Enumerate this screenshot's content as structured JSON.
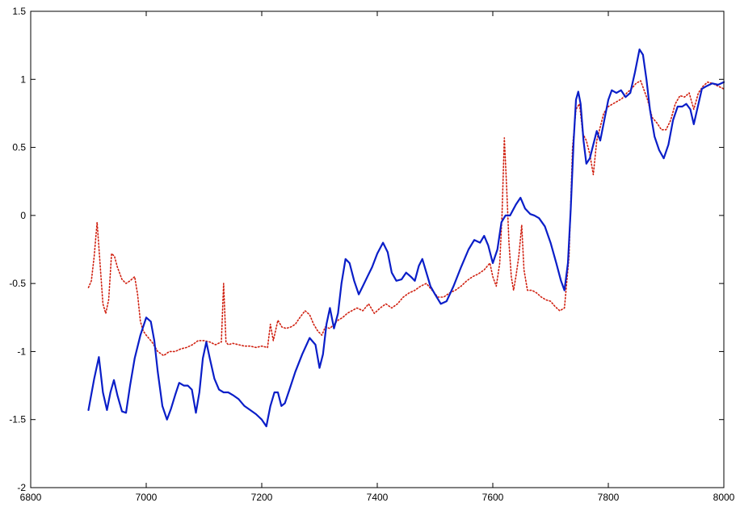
{
  "chart_data": {
    "type": "line",
    "title": "",
    "xlabel": "",
    "ylabel": "",
    "xlim": [
      6800,
      8000
    ],
    "ylim": [
      -2,
      1.5
    ],
    "xticks": [
      6800,
      7000,
      7200,
      7400,
      7600,
      7800,
      8000
    ],
    "yticks": [
      -2,
      -1.5,
      -1,
      -0.5,
      0,
      0.5,
      1,
      1.5
    ],
    "xtick_labels": [
      "6800",
      "7000",
      "7200",
      "7400",
      "7600",
      "7800",
      "8000"
    ],
    "ytick_labels": [
      "-2",
      "-1.5",
      "-1",
      "-0.5",
      "0",
      "0.5",
      "1",
      "1.5"
    ],
    "grid": false,
    "legend": "none",
    "series": [
      {
        "style": "solid",
        "color": "#0a1ec8",
        "points": [
          [
            6900,
            -1.43
          ],
          [
            6910,
            -1.2
          ],
          [
            6918,
            -1.04
          ],
          [
            6925,
            -1.3
          ],
          [
            6932,
            -1.43
          ],
          [
            6938,
            -1.3
          ],
          [
            6944,
            -1.21
          ],
          [
            6950,
            -1.32
          ],
          [
            6958,
            -1.44
          ],
          [
            6965,
            -1.45
          ],
          [
            6972,
            -1.25
          ],
          [
            6980,
            -1.05
          ],
          [
            6990,
            -0.88
          ],
          [
            7000,
            -0.75
          ],
          [
            7008,
            -0.78
          ],
          [
            7014,
            -0.92
          ],
          [
            7020,
            -1.15
          ],
          [
            7028,
            -1.4
          ],
          [
            7036,
            -1.5
          ],
          [
            7043,
            -1.42
          ],
          [
            7050,
            -1.32
          ],
          [
            7057,
            -1.23
          ],
          [
            7065,
            -1.25
          ],
          [
            7072,
            -1.25
          ],
          [
            7079,
            -1.28
          ],
          [
            7086,
            -1.45
          ],
          [
            7092,
            -1.3
          ],
          [
            7098,
            -1.05
          ],
          [
            7104,
            -0.93
          ],
          [
            7110,
            -1.05
          ],
          [
            7118,
            -1.2
          ],
          [
            7126,
            -1.28
          ],
          [
            7134,
            -1.3
          ],
          [
            7142,
            -1.3
          ],
          [
            7150,
            -1.32
          ],
          [
            7160,
            -1.35
          ],
          [
            7170,
            -1.4
          ],
          [
            7180,
            -1.43
          ],
          [
            7190,
            -1.46
          ],
          [
            7200,
            -1.5
          ],
          [
            7208,
            -1.55
          ],
          [
            7215,
            -1.4
          ],
          [
            7222,
            -1.3
          ],
          [
            7228,
            -1.3
          ],
          [
            7234,
            -1.4
          ],
          [
            7240,
            -1.38
          ],
          [
            7248,
            -1.28
          ],
          [
            7258,
            -1.15
          ],
          [
            7270,
            -1.02
          ],
          [
            7283,
            -0.9
          ],
          [
            7293,
            -0.95
          ],
          [
            7300,
            -1.12
          ],
          [
            7306,
            -1.02
          ],
          [
            7312,
            -0.8
          ],
          [
            7318,
            -0.68
          ],
          [
            7325,
            -0.83
          ],
          [
            7332,
            -0.72
          ],
          [
            7338,
            -0.5
          ],
          [
            7345,
            -0.32
          ],
          [
            7352,
            -0.35
          ],
          [
            7360,
            -0.48
          ],
          [
            7368,
            -0.58
          ],
          [
            7375,
            -0.52
          ],
          [
            7383,
            -0.45
          ],
          [
            7391,
            -0.38
          ],
          [
            7400,
            -0.28
          ],
          [
            7410,
            -0.2
          ],
          [
            7418,
            -0.27
          ],
          [
            7425,
            -0.42
          ],
          [
            7433,
            -0.48
          ],
          [
            7442,
            -0.47
          ],
          [
            7450,
            -0.42
          ],
          [
            7458,
            -0.45
          ],
          [
            7465,
            -0.48
          ],
          [
            7472,
            -0.37
          ],
          [
            7478,
            -0.32
          ],
          [
            7485,
            -0.42
          ],
          [
            7492,
            -0.52
          ],
          [
            7500,
            -0.58
          ],
          [
            7510,
            -0.65
          ],
          [
            7520,
            -0.63
          ],
          [
            7532,
            -0.52
          ],
          [
            7545,
            -0.38
          ],
          [
            7558,
            -0.25
          ],
          [
            7568,
            -0.18
          ],
          [
            7578,
            -0.2
          ],
          [
            7585,
            -0.15
          ],
          [
            7592,
            -0.22
          ],
          [
            7600,
            -0.35
          ],
          [
            7608,
            -0.25
          ],
          [
            7615,
            -0.05
          ],
          [
            7622,
            0
          ],
          [
            7630,
            0
          ],
          [
            7640,
            0.08
          ],
          [
            7648,
            0.13
          ],
          [
            7656,
            0.05
          ],
          [
            7665,
            0.01
          ],
          [
            7672,
            0
          ],
          [
            7680,
            -0.02
          ],
          [
            7690,
            -0.08
          ],
          [
            7700,
            -0.2
          ],
          [
            7710,
            -0.35
          ],
          [
            7718,
            -0.48
          ],
          [
            7724,
            -0.55
          ],
          [
            7730,
            -0.35
          ],
          [
            7735,
            0.05
          ],
          [
            7740,
            0.55
          ],
          [
            7744,
            0.85
          ],
          [
            7748,
            0.91
          ],
          [
            7752,
            0.82
          ],
          [
            7757,
            0.55
          ],
          [
            7762,
            0.38
          ],
          [
            7768,
            0.42
          ],
          [
            7774,
            0.52
          ],
          [
            7780,
            0.62
          ],
          [
            7786,
            0.55
          ],
          [
            7793,
            0.7
          ],
          [
            7800,
            0.85
          ],
          [
            7806,
            0.92
          ],
          [
            7814,
            0.9
          ],
          [
            7822,
            0.92
          ],
          [
            7830,
            0.87
          ],
          [
            7838,
            0.9
          ],
          [
            7846,
            1.05
          ],
          [
            7854,
            1.22
          ],
          [
            7860,
            1.18
          ],
          [
            7866,
            1.0
          ],
          [
            7872,
            0.78
          ],
          [
            7880,
            0.58
          ],
          [
            7888,
            0.48
          ],
          [
            7896,
            0.42
          ],
          [
            7904,
            0.52
          ],
          [
            7912,
            0.7
          ],
          [
            7920,
            0.8
          ],
          [
            7928,
            0.8
          ],
          [
            7935,
            0.82
          ],
          [
            7942,
            0.78
          ],
          [
            7948,
            0.67
          ],
          [
            7955,
            0.8
          ],
          [
            7962,
            0.93
          ],
          [
            7970,
            0.95
          ],
          [
            7980,
            0.97
          ],
          [
            7990,
            0.96
          ],
          [
            8000,
            0.98
          ]
        ]
      },
      {
        "style": "dotted",
        "color": "#d02010",
        "points": [
          [
            6900,
            -0.53
          ],
          [
            6905,
            -0.48
          ],
          [
            6910,
            -0.3
          ],
          [
            6915,
            -0.05
          ],
          [
            6920,
            -0.35
          ],
          [
            6925,
            -0.65
          ],
          [
            6930,
            -0.72
          ],
          [
            6935,
            -0.62
          ],
          [
            6940,
            -0.28
          ],
          [
            6945,
            -0.3
          ],
          [
            6950,
            -0.38
          ],
          [
            6958,
            -0.47
          ],
          [
            6965,
            -0.5
          ],
          [
            6972,
            -0.48
          ],
          [
            6980,
            -0.45
          ],
          [
            6985,
            -0.58
          ],
          [
            6990,
            -0.78
          ],
          [
            6995,
            -0.85
          ],
          [
            7000,
            -0.88
          ],
          [
            7010,
            -0.93
          ],
          [
            7020,
            -1.0
          ],
          [
            7030,
            -1.03
          ],
          [
            7040,
            -1.0
          ],
          [
            7050,
            -1.0
          ],
          [
            7060,
            -0.98
          ],
          [
            7070,
            -0.97
          ],
          [
            7080,
            -0.95
          ],
          [
            7090,
            -0.92
          ],
          [
            7100,
            -0.92
          ],
          [
            7110,
            -0.93
          ],
          [
            7120,
            -0.95
          ],
          [
            7130,
            -0.93
          ],
          [
            7134,
            -0.5
          ],
          [
            7138,
            -0.93
          ],
          [
            7142,
            -0.95
          ],
          [
            7150,
            -0.94
          ],
          [
            7160,
            -0.95
          ],
          [
            7170,
            -0.96
          ],
          [
            7180,
            -0.96
          ],
          [
            7190,
            -0.97
          ],
          [
            7200,
            -0.96
          ],
          [
            7210,
            -0.97
          ],
          [
            7215,
            -0.8
          ],
          [
            7220,
            -0.92
          ],
          [
            7228,
            -0.77
          ],
          [
            7235,
            -0.82
          ],
          [
            7242,
            -0.83
          ],
          [
            7250,
            -0.82
          ],
          [
            7258,
            -0.8
          ],
          [
            7266,
            -0.75
          ],
          [
            7275,
            -0.7
          ],
          [
            7283,
            -0.73
          ],
          [
            7290,
            -0.8
          ],
          [
            7297,
            -0.85
          ],
          [
            7304,
            -0.88
          ],
          [
            7310,
            -0.82
          ],
          [
            7318,
            -0.83
          ],
          [
            7325,
            -0.8
          ],
          [
            7332,
            -0.77
          ],
          [
            7340,
            -0.75
          ],
          [
            7348,
            -0.72
          ],
          [
            7356,
            -0.7
          ],
          [
            7365,
            -0.68
          ],
          [
            7375,
            -0.7
          ],
          [
            7385,
            -0.65
          ],
          [
            7395,
            -0.72
          ],
          [
            7405,
            -0.68
          ],
          [
            7415,
            -0.65
          ],
          [
            7425,
            -0.68
          ],
          [
            7435,
            -0.65
          ],
          [
            7445,
            -0.6
          ],
          [
            7455,
            -0.57
          ],
          [
            7465,
            -0.55
          ],
          [
            7475,
            -0.52
          ],
          [
            7485,
            -0.5
          ],
          [
            7495,
            -0.55
          ],
          [
            7505,
            -0.6
          ],
          [
            7515,
            -0.6
          ],
          [
            7525,
            -0.57
          ],
          [
            7535,
            -0.55
          ],
          [
            7545,
            -0.52
          ],
          [
            7555,
            -0.48
          ],
          [
            7565,
            -0.45
          ],
          [
            7575,
            -0.43
          ],
          [
            7585,
            -0.4
          ],
          [
            7595,
            -0.35
          ],
          [
            7600,
            -0.45
          ],
          [
            7606,
            -0.52
          ],
          [
            7612,
            -0.35
          ],
          [
            7616,
            0.0
          ],
          [
            7620,
            0.57
          ],
          [
            7624,
            0.2
          ],
          [
            7628,
            -0.2
          ],
          [
            7632,
            -0.45
          ],
          [
            7636,
            -0.55
          ],
          [
            7640,
            -0.45
          ],
          [
            7645,
            -0.3
          ],
          [
            7650,
            -0.07
          ],
          [
            7654,
            -0.4
          ],
          [
            7660,
            -0.55
          ],
          [
            7668,
            -0.55
          ],
          [
            7676,
            -0.57
          ],
          [
            7684,
            -0.6
          ],
          [
            7692,
            -0.62
          ],
          [
            7700,
            -0.63
          ],
          [
            7708,
            -0.67
          ],
          [
            7716,
            -0.7
          ],
          [
            7724,
            -0.68
          ],
          [
            7732,
            -0.3
          ],
          [
            7738,
            0.5
          ],
          [
            7744,
            0.78
          ],
          [
            7750,
            0.82
          ],
          [
            7756,
            0.6
          ],
          [
            7762,
            0.55
          ],
          [
            7768,
            0.45
          ],
          [
            7774,
            0.3
          ],
          [
            7780,
            0.55
          ],
          [
            7786,
            0.65
          ],
          [
            7792,
            0.75
          ],
          [
            7800,
            0.8
          ],
          [
            7808,
            0.82
          ],
          [
            7816,
            0.84
          ],
          [
            7824,
            0.86
          ],
          [
            7832,
            0.9
          ],
          [
            7840,
            0.93
          ],
          [
            7848,
            0.97
          ],
          [
            7856,
            0.99
          ],
          [
            7862,
            0.92
          ],
          [
            7868,
            0.85
          ],
          [
            7876,
            0.72
          ],
          [
            7884,
            0.68
          ],
          [
            7892,
            0.63
          ],
          [
            7900,
            0.63
          ],
          [
            7908,
            0.7
          ],
          [
            7916,
            0.82
          ],
          [
            7924,
            0.88
          ],
          [
            7932,
            0.87
          ],
          [
            7940,
            0.9
          ],
          [
            7948,
            0.78
          ],
          [
            7956,
            0.9
          ],
          [
            7964,
            0.95
          ],
          [
            7972,
            0.98
          ],
          [
            7980,
            0.97
          ],
          [
            7990,
            0.95
          ],
          [
            8000,
            0.93
          ]
        ]
      }
    ]
  }
}
